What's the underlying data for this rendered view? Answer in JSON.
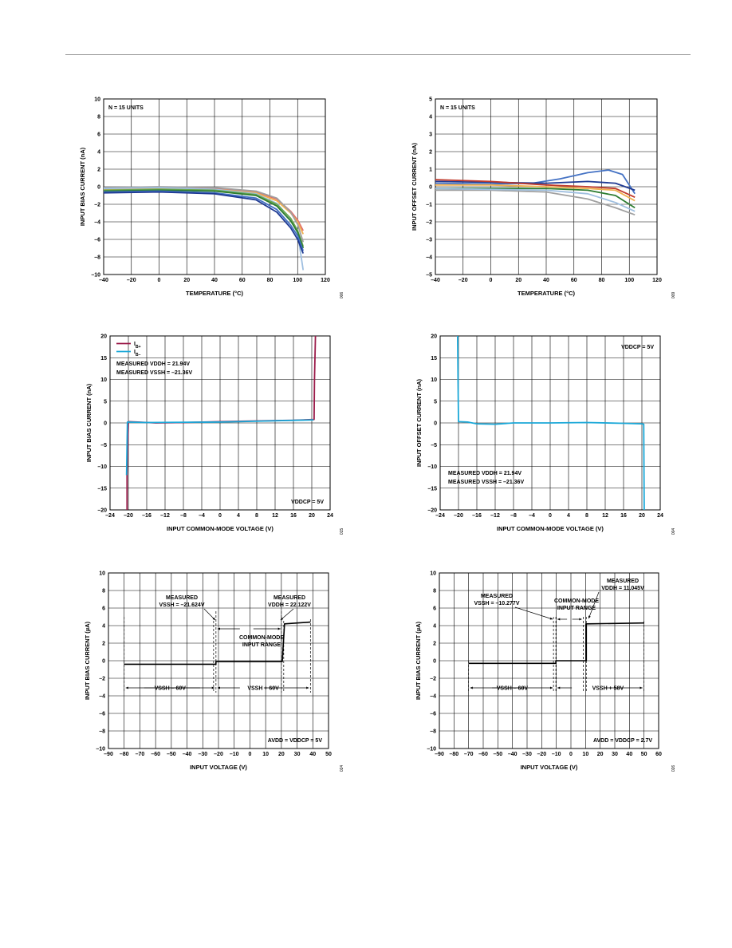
{
  "chart_data": [
    {
      "id": "c1",
      "type": "line",
      "xlabel": "TEMPERATURE (°C)",
      "ylabel": "INPUT BIAS CURRENT (nA)",
      "xlim": [
        -40,
        120
      ],
      "ylim": [
        -10,
        10
      ],
      "xticks": [
        "-40",
        "-20",
        "0",
        "20",
        "40",
        "60",
        "80",
        "100",
        "120"
      ],
      "yticks": [
        "10",
        "8",
        "6",
        "4",
        "2",
        "0",
        "-2",
        "-4",
        "-6",
        "-8",
        "-10"
      ],
      "grid": true,
      "annotations": [
        {
          "text": "N = 15 UNITS",
          "pos": "top-left"
        }
      ],
      "figure_number": "006",
      "series": [
        {
          "color": "#e06b6b",
          "points": [
            [
              -40,
              -0.2
            ],
            [
              0,
              -0.1
            ],
            [
              40,
              -0.2
            ],
            [
              70,
              -0.6
            ],
            [
              85,
              -1.4
            ],
            [
              95,
              -2.8
            ],
            [
              100,
              -3.8
            ],
            [
              104,
              -5.0
            ]
          ]
        },
        {
          "color": "#f0b050",
          "points": [
            [
              -40,
              -0.3
            ],
            [
              0,
              -0.2
            ],
            [
              40,
              -0.3
            ],
            [
              70,
              -0.7
            ],
            [
              85,
              -1.6
            ],
            [
              95,
              -3.0
            ],
            [
              100,
              -4.0
            ],
            [
              104,
              -5.4
            ]
          ]
        },
        {
          "color": "#a0a0a0",
          "points": [
            [
              -40,
              -0.1
            ],
            [
              0,
              0.0
            ],
            [
              40,
              -0.1
            ],
            [
              70,
              -0.5
            ],
            [
              85,
              -1.3
            ],
            [
              95,
              -2.9
            ],
            [
              100,
              -4.3
            ],
            [
              104,
              -6.3
            ]
          ]
        },
        {
          "color": "#9fbfe0",
          "points": [
            [
              -40,
              -0.2
            ],
            [
              0,
              -0.1
            ],
            [
              40,
              -0.3
            ],
            [
              70,
              -0.8
            ],
            [
              85,
              -1.9
            ],
            [
              95,
              -3.7
            ],
            [
              100,
              -5.3
            ],
            [
              104,
              -9.5
            ]
          ]
        },
        {
          "color": "#6aa84f",
          "points": [
            [
              -40,
              -0.4
            ],
            [
              0,
              -0.3
            ],
            [
              40,
              -0.4
            ],
            [
              70,
              -0.9
            ],
            [
              85,
              -2.0
            ],
            [
              95,
              -3.6
            ],
            [
              100,
              -5.0
            ],
            [
              104,
              -6.8
            ]
          ]
        },
        {
          "color": "#2e7d32",
          "points": [
            [
              -40,
              -0.5
            ],
            [
              0,
              -0.4
            ],
            [
              40,
              -0.5
            ],
            [
              70,
              -1.0
            ],
            [
              85,
              -2.2
            ],
            [
              95,
              -3.9
            ],
            [
              100,
              -5.2
            ],
            [
              104,
              -7.0
            ]
          ]
        },
        {
          "color": "#4472c4",
          "points": [
            [
              -40,
              -0.6
            ],
            [
              0,
              -0.5
            ],
            [
              40,
              -0.7
            ],
            [
              70,
              -1.3
            ],
            [
              85,
              -2.6
            ],
            [
              95,
              -4.4
            ],
            [
              100,
              -5.6
            ],
            [
              104,
              -7.3
            ]
          ]
        },
        {
          "color": "#1f3a93",
          "points": [
            [
              -40,
              -0.7
            ],
            [
              0,
              -0.6
            ],
            [
              40,
              -0.8
            ],
            [
              70,
              -1.5
            ],
            [
              85,
              -2.9
            ],
            [
              95,
              -4.7
            ],
            [
              100,
              -6.0
            ],
            [
              104,
              -7.6
            ]
          ]
        }
      ]
    },
    {
      "id": "c2",
      "type": "line",
      "xlabel": "TEMPERATURE (°C)",
      "ylabel": "INPUT OFFSET CURRENT (nA)",
      "xlim": [
        -40,
        120
      ],
      "ylim": [
        -5,
        5
      ],
      "xticks": [
        "-40",
        "-20",
        "0",
        "20",
        "40",
        "60",
        "80",
        "100",
        "120"
      ],
      "yticks": [
        "5",
        "4",
        "3",
        "2",
        "1",
        "0",
        "-1",
        "-2",
        "-3",
        "-4",
        "-5"
      ],
      "grid": true,
      "annotations": [
        {
          "text": "N = 15 UNITS",
          "pos": "top-left"
        }
      ],
      "figure_number": "009",
      "series": [
        {
          "color": "#4472c4",
          "points": [
            [
              -40,
              0.2
            ],
            [
              0,
              0.15
            ],
            [
              30,
              0.2
            ],
            [
              50,
              0.45
            ],
            [
              70,
              0.8
            ],
            [
              85,
              0.95
            ],
            [
              95,
              0.7
            ],
            [
              104,
              -0.4
            ]
          ]
        },
        {
          "color": "#1f3a93",
          "points": [
            [
              -40,
              0.3
            ],
            [
              0,
              0.25
            ],
            [
              40,
              0.2
            ],
            [
              70,
              0.3
            ],
            [
              90,
              0.2
            ],
            [
              104,
              -0.2
            ]
          ]
        },
        {
          "color": "#c0392b",
          "points": [
            [
              -40,
              0.4
            ],
            [
              0,
              0.3
            ],
            [
              40,
              0.1
            ],
            [
              70,
              0.0
            ],
            [
              90,
              -0.1
            ],
            [
              104,
              -0.6
            ]
          ]
        },
        {
          "color": "#f0b050",
          "points": [
            [
              -40,
              0.1
            ],
            [
              0,
              0.1
            ],
            [
              40,
              0.0
            ],
            [
              70,
              -0.1
            ],
            [
              90,
              -0.2
            ],
            [
              104,
              -0.8
            ]
          ]
        },
        {
          "color": "#2e7d32",
          "points": [
            [
              -40,
              -0.1
            ],
            [
              0,
              -0.1
            ],
            [
              40,
              -0.1
            ],
            [
              70,
              -0.2
            ],
            [
              90,
              -0.5
            ],
            [
              104,
              -1.2
            ]
          ]
        },
        {
          "color": "#a0a0a0",
          "points": [
            [
              -40,
              -0.2
            ],
            [
              0,
              -0.2
            ],
            [
              40,
              -0.3
            ],
            [
              70,
              -0.7
            ],
            [
              90,
              -1.2
            ],
            [
              104,
              -1.6
            ]
          ]
        },
        {
          "color": "#9fbfe0",
          "points": [
            [
              -40,
              -0.1
            ],
            [
              0,
              -0.15
            ],
            [
              40,
              -0.2
            ],
            [
              70,
              -0.4
            ],
            [
              90,
              -0.9
            ],
            [
              104,
              -1.4
            ]
          ]
        }
      ]
    },
    {
      "id": "c3",
      "type": "line",
      "xlabel": "INPUT COMMON-MODE VOLTAGE (V)",
      "ylabel": "INPUT BIAS CURRENT (nA)",
      "xlim": [
        -24,
        24
      ],
      "ylim": [
        -20,
        20
      ],
      "xticks": [
        "-24",
        "-20",
        "-16",
        "-12",
        "-8",
        "-4",
        "0",
        "4",
        "8",
        "12",
        "16",
        "20",
        "24"
      ],
      "yticks": [
        "20",
        "15",
        "10",
        "5",
        "0",
        "-5",
        "-10",
        "-15",
        "-20"
      ],
      "grid": true,
      "legend": {
        "position": "top-left",
        "entries": [
          {
            "label": "IB+",
            "color": "#9b1b4a"
          },
          {
            "label": "IB–",
            "color": "#1ba8d8"
          }
        ]
      },
      "annotations": [
        {
          "text": "MEASURED VDDH = 21.94V",
          "pos": "top-left"
        },
        {
          "text": "MEASURED VSSH = –21.36V",
          "pos": "top-left"
        },
        {
          "text": "VDDCP = 5V",
          "pos": "bottom-right"
        }
      ],
      "figure_number": "015",
      "series": [
        {
          "name": "IB+",
          "color": "#9b1b4a",
          "points": [
            [
              -20.3,
              -20
            ],
            [
              -20.3,
              -12
            ],
            [
              -20,
              0.3
            ],
            [
              -18,
              0.2
            ],
            [
              -14,
              0.0
            ],
            [
              -8,
              0.1
            ],
            [
              0,
              0.3
            ],
            [
              10,
              0.5
            ],
            [
              16,
              0.6
            ],
            [
              20.5,
              0.8
            ],
            [
              20.6,
              10
            ],
            [
              20.8,
              20
            ]
          ]
        },
        {
          "name": "IB–",
          "color": "#1ba8d8",
          "points": [
            [
              -20.4,
              -12
            ],
            [
              -20.2,
              0.2
            ],
            [
              -16,
              0.1
            ],
            [
              0,
              0.2
            ],
            [
              20.4,
              0.7
            ]
          ]
        }
      ]
    },
    {
      "id": "c4",
      "type": "line",
      "xlabel": "INPUT COMMON-MODE VOLTAGE (V)",
      "ylabel": "INPUT OFFSET CURRENT (nA)",
      "xlim": [
        -24,
        24
      ],
      "ylim": [
        -20,
        20
      ],
      "xticks": [
        "-24",
        "-20",
        "-16",
        "-12",
        "-8",
        "-4",
        "0",
        "4",
        "8",
        "12",
        "16",
        "20",
        "24"
      ],
      "yticks": [
        "20",
        "15",
        "10",
        "5",
        "0",
        "-5",
        "-10",
        "-15",
        "-20"
      ],
      "grid": true,
      "annotations": [
        {
          "text": "VDDCP = 5V",
          "pos": "top-right"
        },
        {
          "text": "MEASURED VDDH = 21.94V",
          "pos": "bottom-left"
        },
        {
          "text": "MEASURED VSSH = –21.36V",
          "pos": "bottom-left"
        }
      ],
      "figure_number": "004",
      "series": [
        {
          "color": "#1ba8d8",
          "points": [
            [
              -20.2,
              20
            ],
            [
              -20.1,
              10
            ],
            [
              -20,
              0.3
            ],
            [
              -18,
              0.2
            ],
            [
              -16,
              -0.2
            ],
            [
              -12,
              -0.3
            ],
            [
              -8,
              0.0
            ],
            [
              0,
              0.0
            ],
            [
              8,
              0.1
            ],
            [
              16,
              -0.1
            ],
            [
              20,
              -0.2
            ],
            [
              20.4,
              -0.3
            ],
            [
              20.5,
              -20
            ]
          ]
        }
      ]
    },
    {
      "id": "c5",
      "type": "line",
      "xlabel": "INPUT VOLTAGE (V)",
      "ylabel": "INPUT BIAS CURRENT (µA)",
      "xlim": [
        -90,
        50
      ],
      "ylim": [
        -10,
        10
      ],
      "xticks": [
        "-90",
        "-80",
        "-70",
        "-60",
        "-50",
        "-40",
        "-30",
        "-20",
        "-10",
        "0",
        "10",
        "20",
        "30",
        "40",
        "50"
      ],
      "yticks": [
        "10",
        "8",
        "6",
        "4",
        "2",
        "0",
        "-2",
        "-4",
        "-6",
        "-8",
        "-10"
      ],
      "grid": true,
      "annotations": [
        {
          "text": "MEASURED",
          "pos": "top"
        },
        {
          "text": "VSSH = –21.624V",
          "pos": "top"
        },
        {
          "text": "MEASURED",
          "pos": "top"
        },
        {
          "text": "VDDH = 22.122V",
          "pos": "top"
        },
        {
          "text": "COMMON-MODE",
          "pos": "center"
        },
        {
          "text": "INPUT RANGE",
          "pos": "center"
        },
        {
          "text": "VSSH – 60V",
          "pos": "bottom"
        },
        {
          "text": "VSSH + 60V",
          "pos": "bottom"
        },
        {
          "text": "AVDD = VDDCP = 5V",
          "pos": "bottom-right"
        }
      ],
      "figure_number": "024",
      "series": [
        {
          "color": "#000000",
          "points": [
            [
              -80,
              -0.4
            ],
            [
              -21.6,
              -0.4
            ],
            [
              -21.6,
              -0.1
            ],
            [
              20.6,
              -0.1
            ],
            [
              20.6,
              -0.1
            ],
            [
              22,
              4.2
            ],
            [
              38.5,
              4.4
            ]
          ]
        }
      ]
    },
    {
      "id": "c6",
      "type": "line",
      "xlabel": "INPUT VOLTAGE (V)",
      "ylabel": "INPUT BIAS CURRENT (µA)",
      "xlim": [
        -90,
        60
      ],
      "ylim": [
        -10,
        10
      ],
      "xticks": [
        "-90",
        "-80",
        "-70",
        "-60",
        "-50",
        "-40",
        "-30",
        "-20",
        "-10",
        "0",
        "10",
        "20",
        "30",
        "40",
        "50",
        "60"
      ],
      "yticks": [
        "10",
        "8",
        "6",
        "4",
        "2",
        "0",
        "-2",
        "-4",
        "-6",
        "-8",
        "-10"
      ],
      "grid": true,
      "annotations": [
        {
          "text": "MEASURED",
          "pos": "top-right"
        },
        {
          "text": "VDDH = 11.045V",
          "pos": "top-right"
        },
        {
          "text": "MEASURED",
          "pos": "top"
        },
        {
          "text": "VSSH = –10.277V",
          "pos": "top"
        },
        {
          "text": "COMMON-MODE",
          "pos": "top"
        },
        {
          "text": "INPUT RANGE",
          "pos": "top"
        },
        {
          "text": "VSSH – 60V",
          "pos": "bottom"
        },
        {
          "text": "VSSH + 58V",
          "pos": "bottom"
        },
        {
          "text": "AVDD = VDDCP = 2.7V",
          "pos": "bottom-right"
        }
      ],
      "figure_number": "026",
      "series": [
        {
          "color": "#000000",
          "points": [
            [
              -70,
              -0.3
            ],
            [
              -10.3,
              -0.3
            ],
            [
              -10.3,
              0.0
            ],
            [
              10.5,
              0.0
            ],
            [
              10.5,
              4.2
            ],
            [
              50,
              4.3
            ]
          ]
        }
      ]
    }
  ]
}
